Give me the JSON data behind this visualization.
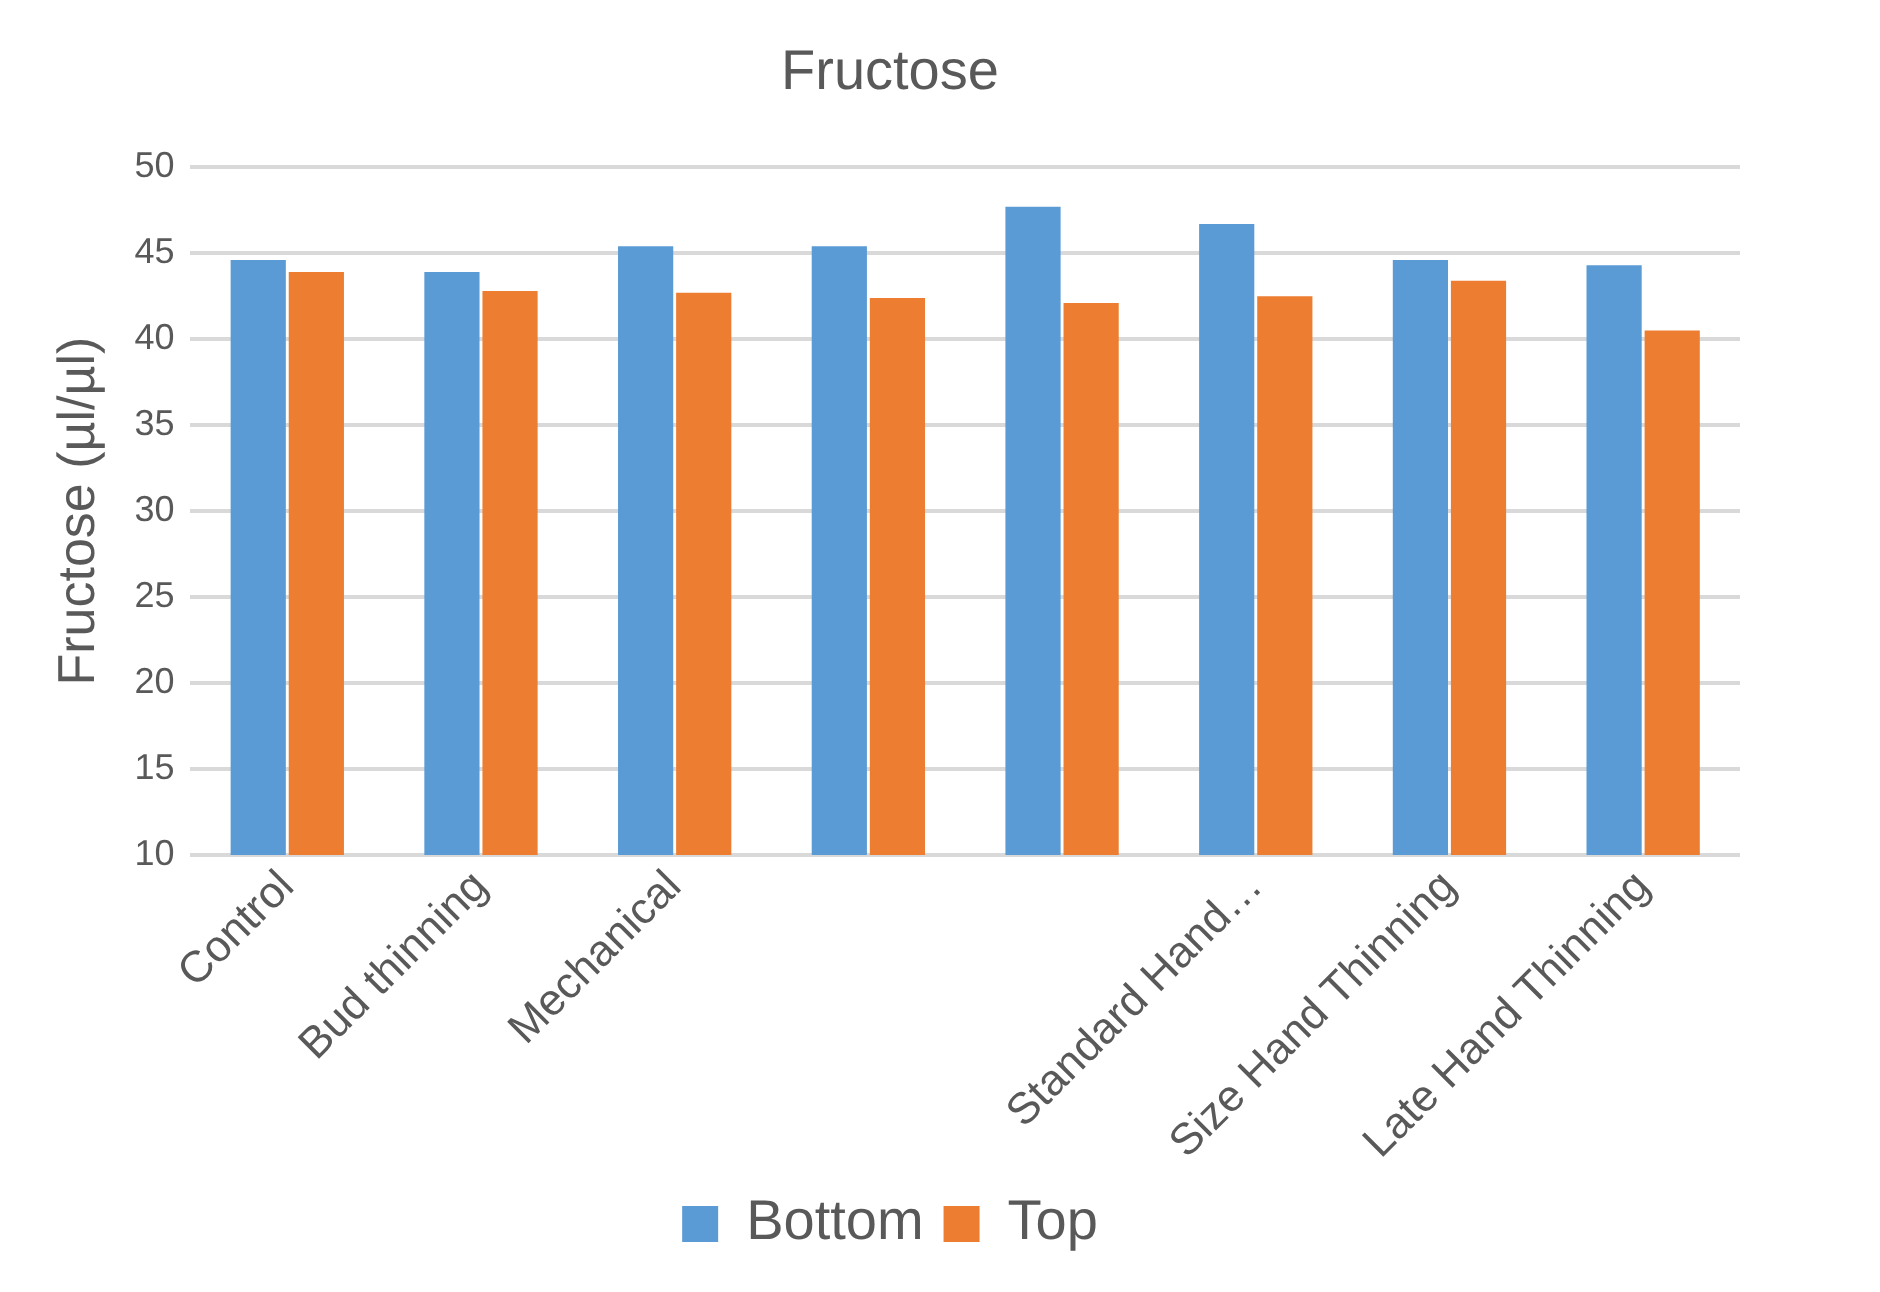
{
  "chart_data": {
    "type": "bar",
    "title": "Fructose",
    "ylabel": "Fructose (µl/µl)",
    "categories": [
      "Control",
      "Bud thinning",
      "Mechanical",
      null,
      null,
      "Standard Hand…",
      "Size Hand Thinning",
      "Late Hand Thinning"
    ],
    "series": [
      {
        "name": "Bottom",
        "color": "#5b9bd5",
        "values": [
          44.6,
          43.9,
          45.4,
          45.4,
          47.7,
          46.7,
          44.6,
          44.3
        ]
      },
      {
        "name": "Top",
        "color": "#ed7d31",
        "values": [
          43.9,
          42.8,
          42.7,
          42.4,
          42.1,
          42.5,
          43.4,
          40.5
        ]
      }
    ],
    "ylim": [
      10,
      50
    ],
    "yticks": [
      10,
      15,
      20,
      25,
      30,
      35,
      40,
      45,
      50
    ],
    "grid": "y",
    "legend": "bottom"
  }
}
